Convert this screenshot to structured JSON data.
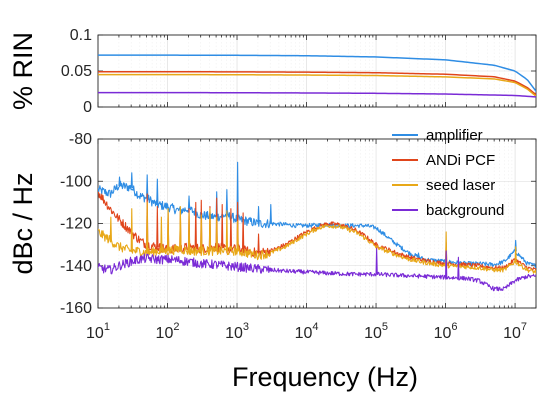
{
  "chart_data": [
    {
      "type": "line",
      "ylabel": "% RIN",
      "xscale": "log",
      "xlim": [
        10,
        20000000
      ],
      "ylim": [
        0,
        0.1
      ],
      "yticks": [
        0,
        0.05,
        0.1
      ],
      "ytick_labels": [
        "0",
        "0.05",
        "0.1"
      ],
      "grid": true,
      "series": [
        {
          "name": "amplifier",
          "color": "#2f8de4",
          "x": [
            10,
            100,
            1000,
            10000,
            100000,
            1000000,
            5000000,
            10000000,
            15000000,
            20000000
          ],
          "y": [
            0.072,
            0.072,
            0.0718,
            0.0712,
            0.0695,
            0.0655,
            0.058,
            0.05,
            0.038,
            0.022
          ]
        },
        {
          "name": "ANDi PCF",
          "color": "#e0451b",
          "x": [
            10,
            100,
            1000,
            10000,
            100000,
            1000000,
            5000000,
            10000000,
            15000000,
            20000000
          ],
          "y": [
            0.049,
            0.049,
            0.0488,
            0.0484,
            0.0476,
            0.0455,
            0.042,
            0.036,
            0.027,
            0.017
          ]
        },
        {
          "name": "seed laser",
          "color": "#e8a818",
          "x": [
            10,
            100,
            1000,
            10000,
            100000,
            1000000,
            5000000,
            10000000,
            15000000,
            20000000
          ],
          "y": [
            0.045,
            0.045,
            0.0448,
            0.0444,
            0.0437,
            0.0418,
            0.039,
            0.034,
            0.025,
            0.015
          ]
        },
        {
          "name": "background",
          "color": "#7a2bd6",
          "x": [
            10,
            100,
            1000,
            10000,
            100000,
            1000000,
            10000000,
            20000000
          ],
          "y": [
            0.02,
            0.02,
            0.0198,
            0.0195,
            0.019,
            0.018,
            0.016,
            0.014
          ]
        }
      ]
    },
    {
      "type": "line",
      "xlabel": "Frequency (Hz)",
      "ylabel": "dBc / Hz",
      "xscale": "log",
      "xlim": [
        10,
        20000000
      ],
      "ylim": [
        -160,
        -80
      ],
      "xticks": [
        10,
        100,
        1000,
        10000,
        100000,
        1000000,
        10000000
      ],
      "xtick_labels": [
        "10^1",
        "10^2",
        "10^3",
        "10^4",
        "10^5",
        "10^6",
        "10^7"
      ],
      "yticks": [
        -160,
        -140,
        -120,
        -100,
        -80
      ],
      "ytick_labels": [
        "-160",
        "-140",
        "-120",
        "-100",
        "-80"
      ],
      "grid": true,
      "legend": "top-right",
      "series": [
        {
          "name": "amplifier",
          "color": "#2f8de4",
          "x": [
            10,
            15,
            20,
            30,
            40,
            50,
            70,
            100,
            150,
            200,
            300,
            500,
            700,
            1000,
            1500,
            2000,
            3000,
            5000,
            7000,
            10000,
            20000,
            30000,
            50000,
            70000,
            100000,
            200000,
            300000,
            500000,
            1000000,
            2000000,
            3000000,
            5000000,
            7000000,
            10000000,
            15000000,
            20000000
          ],
          "y": [
            -104,
            -106,
            -102,
            -103,
            -107,
            -108,
            -111,
            -112,
            -114,
            -113,
            -116,
            -117,
            -116,
            -118,
            -119,
            -120,
            -120,
            -120.5,
            -121,
            -121,
            -120.5,
            -121,
            -121,
            -121,
            -122,
            -130,
            -134,
            -137,
            -138,
            -139,
            -139,
            -139.5,
            -138,
            -133,
            -139,
            -140
          ],
          "spikes": [
            [
              20,
              -98
            ],
            [
              30,
              -96
            ],
            [
              50,
              -97
            ],
            [
              70,
              -99
            ],
            [
              200,
              -107
            ],
            [
              500,
              -105
            ],
            [
              700,
              -104
            ],
            [
              1000,
              -91
            ],
            [
              2000,
              -112
            ],
            [
              3000,
              -111
            ],
            [
              400000,
              -134
            ],
            [
              10000000,
              -128
            ]
          ]
        },
        {
          "name": "ANDi PCF",
          "color": "#e0451b",
          "x": [
            10,
            15,
            20,
            30,
            40,
            50,
            70,
            100,
            150,
            200,
            300,
            500,
            700,
            1000,
            2000,
            3000,
            5000,
            7000,
            10000,
            15000,
            20000,
            30000,
            50000,
            70000,
            100000,
            200000,
            300000,
            500000,
            1000000,
            2000000,
            3000000,
            5000000,
            7000000,
            10000000,
            15000000,
            20000000
          ],
          "y": [
            -105,
            -113,
            -118,
            -124,
            -128,
            -130,
            -131,
            -132,
            -132,
            -131,
            -132,
            -131,
            -132,
            -132,
            -134,
            -133,
            -130,
            -127,
            -124,
            -121.5,
            -120,
            -120.5,
            -123,
            -126,
            -130,
            -134,
            -136,
            -137.5,
            -139,
            -139.5,
            -140,
            -141,
            -141,
            -137,
            -141,
            -142
          ],
          "spikes": [
            [
              50,
              -106
            ],
            [
              70,
              -112
            ],
            [
              100,
              -115
            ],
            [
              150,
              -114
            ],
            [
              200,
              -113
            ],
            [
              250,
              -110
            ],
            [
              300,
              -109
            ],
            [
              400,
              -112
            ],
            [
              500,
              -108
            ],
            [
              600,
              -111
            ],
            [
              800,
              -113
            ],
            [
              1000,
              -110
            ],
            [
              1200,
              -115
            ],
            [
              2000,
              -125
            ],
            [
              100000,
              -132
            ],
            [
              1000000,
              -129
            ]
          ]
        },
        {
          "name": "seed laser",
          "color": "#e8a818",
          "x": [
            10,
            15,
            20,
            30,
            40,
            50,
            70,
            100,
            150,
            200,
            300,
            500,
            700,
            1000,
            2000,
            3000,
            5000,
            7000,
            10000,
            15000,
            20000,
            30000,
            50000,
            70000,
            100000,
            200000,
            300000,
            500000,
            1000000,
            2000000,
            3000000,
            5000000,
            7000000,
            10000000,
            15000000,
            20000000
          ],
          "y": [
            -124,
            -128,
            -131,
            -133,
            -133,
            -134,
            -133,
            -133,
            -132,
            -133,
            -133,
            -133,
            -133,
            -133,
            -135,
            -134,
            -131,
            -128,
            -125,
            -122,
            -121,
            -121.5,
            -124,
            -127,
            -131,
            -135,
            -137,
            -138.5,
            -140,
            -140.5,
            -141,
            -142,
            -142,
            -138,
            -142,
            -143
          ],
          "spikes": [
            [
              15,
              -117
            ],
            [
              30,
              -113
            ],
            [
              50,
              -110
            ],
            [
              80,
              -117
            ],
            [
              100,
              -113
            ],
            [
              150,
              -112
            ],
            [
              200,
              -115
            ],
            [
              300,
              -116
            ],
            [
              400,
              -113
            ],
            [
              500,
              -117
            ],
            [
              700,
              -114
            ],
            [
              1000,
              -119
            ],
            [
              1000000,
              -124
            ],
            [
              10000000,
              -131
            ]
          ]
        },
        {
          "name": "background",
          "color": "#7a2bd6",
          "x": [
            10,
            15,
            20,
            30,
            40,
            50,
            70,
            100,
            150,
            200,
            300,
            500,
            700,
            1000,
            2000,
            3000,
            5000,
            10000,
            20000,
            50000,
            100000,
            200000,
            500000,
            1000000,
            2000000,
            3000000,
            5000000,
            7000000,
            10000000,
            15000000,
            20000000
          ],
          "y": [
            -141,
            -142,
            -140,
            -138,
            -137,
            -136.5,
            -137,
            -137,
            -137.5,
            -138,
            -139,
            -139.5,
            -140,
            -140.5,
            -141.5,
            -142,
            -142.5,
            -143,
            -143.5,
            -144,
            -144,
            -144.5,
            -145,
            -145.5,
            -146,
            -147,
            -151,
            -151,
            -147,
            -145,
            -145
          ],
          "spikes": [
            [
              100000,
              -132
            ],
            [
              1000000,
              -133
            ],
            [
              1500000,
              -136
            ]
          ]
        }
      ]
    }
  ]
}
